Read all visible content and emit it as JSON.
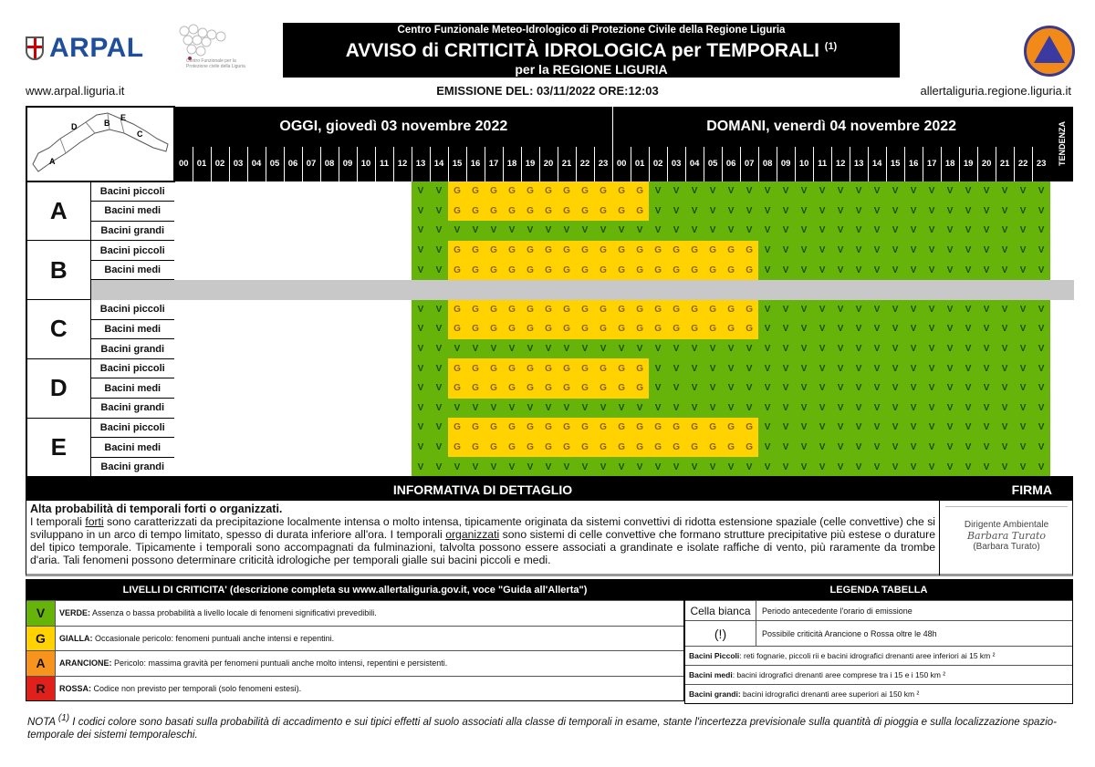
{
  "header": {
    "logo": "ARPAL",
    "cfp_caption": "Centro Funzionale per la Protezione civile della Liguria",
    "subtitle_top": "Centro Funzionale Meteo-Idrologico di Protezione Civile della Regione Liguria",
    "title": "AVVISO di CRITICITÀ IDROLOGICA per TEMPORALI",
    "title_note": "(1)",
    "title_region": "per la REGIONE LIGURIA",
    "site_left": "www.arpal.liguria.it",
    "emission": "EMISSIONE DEL: 03/11/2022 ORE:12:03",
    "site_right": "allertaliguria.regione.liguria.it"
  },
  "grid": {
    "map_labels": [
      "A",
      "B",
      "C",
      "D",
      "E"
    ],
    "today": "OGGI, giovedì 03 novembre 2022",
    "tomorrow": "DOMANI, venerdì 04 novembre 2022",
    "tendency": "TENDENZA",
    "hours": [
      "00",
      "01",
      "02",
      "03",
      "04",
      "05",
      "06",
      "07",
      "08",
      "09",
      "10",
      "11",
      "12",
      "13",
      "14",
      "15",
      "16",
      "17",
      "18",
      "19",
      "20",
      "21",
      "22",
      "23",
      "00",
      "01",
      "02",
      "03",
      "04",
      "05",
      "06",
      "07",
      "08",
      "09",
      "10",
      "11",
      "12",
      "13",
      "14",
      "15",
      "16",
      "17",
      "18",
      "19",
      "20",
      "21",
      "22",
      "23"
    ],
    "colors": {
      "V": "#66b40a",
      "G": "#ffd200",
      "not_applicable": "#c8c8c8"
    },
    "zones": [
      {
        "zone": "A",
        "rows": [
          {
            "basin": "Bacini piccoli",
            "cells": [
              "",
              "",
              "",
              "",
              "",
              "",
              "",
              "",
              "",
              "",
              "",
              "",
              "",
              "V",
              "V",
              "G",
              "G",
              "G",
              "G",
              "G",
              "G",
              "G",
              "G",
              "G",
              "G",
              "G",
              "V",
              "V",
              "V",
              "V",
              "V",
              "V",
              "V",
              "V",
              "V",
              "V",
              "V",
              "V",
              "V",
              "V",
              "V",
              "V",
              "V",
              "V",
              "V",
              "V",
              "V",
              "V"
            ]
          },
          {
            "basin": "Bacini medi",
            "cells": [
              "",
              "",
              "",
              "",
              "",
              "",
              "",
              "",
              "",
              "",
              "",
              "",
              "",
              "V",
              "V",
              "G",
              "G",
              "G",
              "G",
              "G",
              "G",
              "G",
              "G",
              "G",
              "G",
              "G",
              "V",
              "V",
              "V",
              "V",
              "V",
              "V",
              "V",
              "V",
              "V",
              "V",
              "V",
              "V",
              "V",
              "V",
              "V",
              "V",
              "V",
              "V",
              "V",
              "V",
              "V",
              "V"
            ]
          },
          {
            "basin": "Bacini grandi",
            "cells": [
              "",
              "",
              "",
              "",
              "",
              "",
              "",
              "",
              "",
              "",
              "",
              "",
              "",
              "V",
              "V",
              "V",
              "V",
              "V",
              "V",
              "V",
              "V",
              "V",
              "V",
              "V",
              "V",
              "V",
              "V",
              "V",
              "V",
              "V",
              "V",
              "V",
              "V",
              "V",
              "V",
              "V",
              "V",
              "V",
              "V",
              "V",
              "V",
              "V",
              "V",
              "V",
              "V",
              "V",
              "V",
              "V"
            ]
          }
        ]
      },
      {
        "zone": "B",
        "rows": [
          {
            "basin": "Bacini piccoli",
            "cells": [
              "",
              "",
              "",
              "",
              "",
              "",
              "",
              "",
              "",
              "",
              "",
              "",
              "",
              "V",
              "V",
              "G",
              "G",
              "G",
              "G",
              "G",
              "G",
              "G",
              "G",
              "G",
              "G",
              "G",
              "G",
              "G",
              "G",
              "G",
              "G",
              "G",
              "V",
              "V",
              "V",
              "V",
              "V",
              "V",
              "V",
              "V",
              "V",
              "V",
              "V",
              "V",
              "V",
              "V",
              "V",
              "V"
            ]
          },
          {
            "basin": "Bacini medi",
            "cells": [
              "",
              "",
              "",
              "",
              "",
              "",
              "",
              "",
              "",
              "",
              "",
              "",
              "",
              "V",
              "V",
              "G",
              "G",
              "G",
              "G",
              "G",
              "G",
              "G",
              "G",
              "G",
              "G",
              "G",
              "G",
              "G",
              "G",
              "G",
              "G",
              "G",
              "V",
              "V",
              "V",
              "V",
              "V",
              "V",
              "V",
              "V",
              "V",
              "V",
              "V",
              "V",
              "V",
              "V",
              "V",
              "V"
            ]
          },
          {
            "basin": "",
            "not_applicable": true,
            "cells": []
          }
        ]
      },
      {
        "zone": "C",
        "rows": [
          {
            "basin": "Bacini piccoli",
            "cells": [
              "",
              "",
              "",
              "",
              "",
              "",
              "",
              "",
              "",
              "",
              "",
              "",
              "",
              "V",
              "V",
              "G",
              "G",
              "G",
              "G",
              "G",
              "G",
              "G",
              "G",
              "G",
              "G",
              "G",
              "G",
              "G",
              "G",
              "G",
              "G",
              "G",
              "V",
              "V",
              "V",
              "V",
              "V",
              "V",
              "V",
              "V",
              "V",
              "V",
              "V",
              "V",
              "V",
              "V",
              "V",
              "V"
            ]
          },
          {
            "basin": "Bacini medi",
            "cells": [
              "",
              "",
              "",
              "",
              "",
              "",
              "",
              "",
              "",
              "",
              "",
              "",
              "",
              "V",
              "V",
              "G",
              "G",
              "G",
              "G",
              "G",
              "G",
              "G",
              "G",
              "G",
              "G",
              "G",
              "G",
              "G",
              "G",
              "G",
              "G",
              "G",
              "V",
              "V",
              "V",
              "V",
              "V",
              "V",
              "V",
              "V",
              "V",
              "V",
              "V",
              "V",
              "V",
              "V",
              "V",
              "V"
            ]
          },
          {
            "basin": "Bacini grandi",
            "cells": [
              "",
              "",
              "",
              "",
              "",
              "",
              "",
              "",
              "",
              "",
              "",
              "",
              "",
              "V",
              "V",
              "V",
              "V",
              "V",
              "V",
              "V",
              "V",
              "V",
              "V",
              "V",
              "V",
              "V",
              "V",
              "V",
              "V",
              "V",
              "V",
              "V",
              "V",
              "V",
              "V",
              "V",
              "V",
              "V",
              "V",
              "V",
              "V",
              "V",
              "V",
              "V",
              "V",
              "V",
              "V",
              "V"
            ]
          }
        ]
      },
      {
        "zone": "D",
        "rows": [
          {
            "basin": "Bacini piccoli",
            "cells": [
              "",
              "",
              "",
              "",
              "",
              "",
              "",
              "",
              "",
              "",
              "",
              "",
              "",
              "V",
              "V",
              "G",
              "G",
              "G",
              "G",
              "G",
              "G",
              "G",
              "G",
              "G",
              "G",
              "G",
              "V",
              "V",
              "V",
              "V",
              "V",
              "V",
              "V",
              "V",
              "V",
              "V",
              "V",
              "V",
              "V",
              "V",
              "V",
              "V",
              "V",
              "V",
              "V",
              "V",
              "V",
              "V"
            ]
          },
          {
            "basin": "Bacini medi",
            "cells": [
              "",
              "",
              "",
              "",
              "",
              "",
              "",
              "",
              "",
              "",
              "",
              "",
              "",
              "V",
              "V",
              "G",
              "G",
              "G",
              "G",
              "G",
              "G",
              "G",
              "G",
              "G",
              "G",
              "G",
              "V",
              "V",
              "V",
              "V",
              "V",
              "V",
              "V",
              "V",
              "V",
              "V",
              "V",
              "V",
              "V",
              "V",
              "V",
              "V",
              "V",
              "V",
              "V",
              "V",
              "V",
              "V"
            ]
          },
          {
            "basin": "Bacini grandi",
            "cells": [
              "",
              "",
              "",
              "",
              "",
              "",
              "",
              "",
              "",
              "",
              "",
              "",
              "",
              "V",
              "V",
              "V",
              "V",
              "V",
              "V",
              "V",
              "V",
              "V",
              "V",
              "V",
              "V",
              "V",
              "V",
              "V",
              "V",
              "V",
              "V",
              "V",
              "V",
              "V",
              "V",
              "V",
              "V",
              "V",
              "V",
              "V",
              "V",
              "V",
              "V",
              "V",
              "V",
              "V",
              "V",
              "V"
            ]
          }
        ]
      },
      {
        "zone": "E",
        "rows": [
          {
            "basin": "Bacini piccoli",
            "cells": [
              "",
              "",
              "",
              "",
              "",
              "",
              "",
              "",
              "",
              "",
              "",
              "",
              "",
              "V",
              "V",
              "G",
              "G",
              "G",
              "G",
              "G",
              "G",
              "G",
              "G",
              "G",
              "G",
              "G",
              "G",
              "G",
              "G",
              "G",
              "G",
              "G",
              "V",
              "V",
              "V",
              "V",
              "V",
              "V",
              "V",
              "V",
              "V",
              "V",
              "V",
              "V",
              "V",
              "V",
              "V",
              "V"
            ]
          },
          {
            "basin": "Bacini medi",
            "cells": [
              "",
              "",
              "",
              "",
              "",
              "",
              "",
              "",
              "",
              "",
              "",
              "",
              "",
              "V",
              "V",
              "G",
              "G",
              "G",
              "G",
              "G",
              "G",
              "G",
              "G",
              "G",
              "G",
              "G",
              "G",
              "G",
              "G",
              "G",
              "G",
              "G",
              "V",
              "V",
              "V",
              "V",
              "V",
              "V",
              "V",
              "V",
              "V",
              "V",
              "V",
              "V",
              "V",
              "V",
              "V",
              "V"
            ]
          },
          {
            "basin": "Bacini grandi",
            "cells": [
              "",
              "",
              "",
              "",
              "",
              "",
              "",
              "",
              "",
              "",
              "",
              "",
              "",
              "V",
              "V",
              "V",
              "V",
              "V",
              "V",
              "V",
              "V",
              "V",
              "V",
              "V",
              "V",
              "V",
              "V",
              "V",
              "V",
              "V",
              "V",
              "V",
              "V",
              "V",
              "V",
              "V",
              "V",
              "V",
              "V",
              "V",
              "V",
              "V",
              "V",
              "V",
              "V",
              "V",
              "V",
              "V"
            ]
          }
        ]
      }
    ]
  },
  "info": {
    "title": "INFORMATIVA DI DETTAGLIO",
    "firma_title": "FIRMA",
    "headline": "Alta probabilità di temporali forti o organizzati.",
    "p1": "I temporali ",
    "u1": "forti",
    "p2": " sono caratterizzati da precipitazione localmente intensa o molto intensa, tipicamente originata da sistemi convettivi di ridotta estensione spaziale (celle convettive) che si sviluppano in un arco di tempo limitato, spesso di durata inferiore all'ora. I temporali ",
    "u2": "organizzati",
    "p3": " sono sistemi di celle convettive che formano strutture precipitative più estese o durature del tipico temporale. Tipicamente i temporali sono accompagnati da fulminazioni, talvolta possono essere associati a grandinate e isolate raffiche di vento, più raramente da trombe d'aria. Tali fenomeni possono determinare criticità idrologiche per temporali gialle sui bacini piccoli e medi.",
    "signer_role": "Dirigente Ambientale",
    "signature": "Barbara Turato",
    "signer_name": "(Barbara Turato)"
  },
  "levels": {
    "title": "LIVELLI DI CRITICITA' (descrizione completa su www.allertaliguria.gov.it, voce \"Guida all'Allerta\")",
    "items": [
      {
        "code": "V",
        "color": "#66b40a",
        "name": "VERDE:",
        "desc": "Assenza o bassa probabilità a livello locale di fenomeni significativi prevedibili."
      },
      {
        "code": "G",
        "color": "#ffd200",
        "name": "GIALLA:",
        "desc": "Occasionale pericolo: fenomeni puntuali anche intensi e repentini."
      },
      {
        "code": "A",
        "color": "#f7941d",
        "name": "ARANCIONE:",
        "desc": "Pericolo: massima gravità per fenomeni puntuali anche molto intensi, repentini e persistenti."
      },
      {
        "code": "R",
        "color": "#e0201b",
        "name": "ROSSA:",
        "desc": "Codice non previsto per temporali (solo fenomeni estesi)."
      }
    ]
  },
  "legend": {
    "title": "LEGENDA TABELLA",
    "white_key": "Cella bianca",
    "white_desc": "Periodo antecedente l'orario di emissione",
    "excl_key": "(!)",
    "excl_desc": "Possibile criticità Arancione o Rossa oltre le 48h",
    "small_key": "Bacini Piccoli",
    "small_desc": ": reti fognarie, piccoli rii e bacini idrografici drenanti aree inferiori ai 15 km ²",
    "medium_key": "Bacini medi",
    "medium_desc": ": bacini idrografici drenanti aree comprese tra i 15 e i 150 km ²",
    "large_key": "Bacini grandi:",
    "large_desc": " bacini idrografici drenanti aree superiori ai 150 km ²"
  },
  "nota": {
    "label": "NOTA ",
    "ref": "(1)",
    "text": " I codici colore sono basati sulla probabilità di accadimento e sui tipici effetti al suolo associati alla classe di temporali in esame, stante l'incertezza previsionale sulla quantità di pioggia e sulla localizzazione spazio-temporale dei sistemi temporaleschi."
  }
}
